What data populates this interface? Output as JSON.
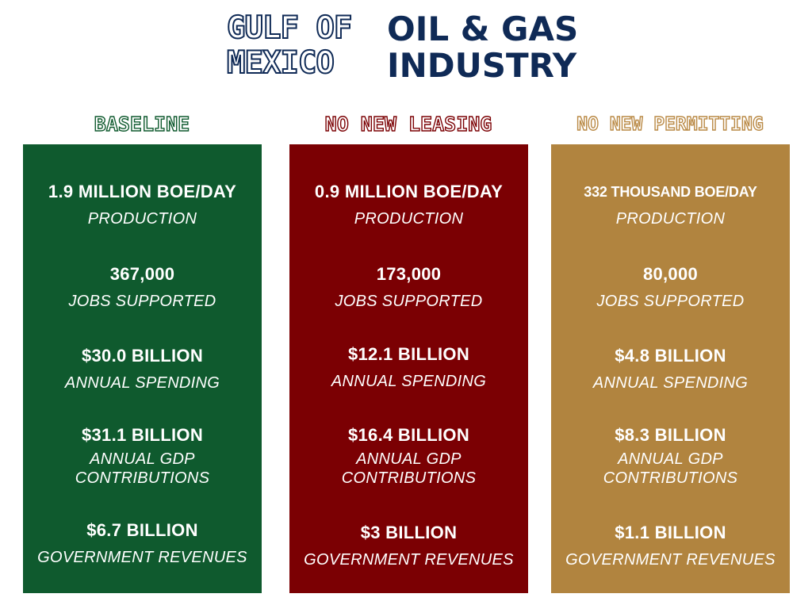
{
  "title": {
    "outline_line1": "GULF OF",
    "outline_line2": "MEXICO",
    "solid_line1": "OIL & GAS",
    "solid_line2": "INDUSTRY"
  },
  "colors": {
    "navy": "#0f2a56",
    "baseline": "#0f5a2e",
    "no_new_leasing": "#7b0003",
    "no_new_permitting": "#b1843f"
  },
  "scenarios": [
    {
      "heading": "BASELINE",
      "metrics": [
        {
          "value": "1.9 MILLION BOE/DAY",
          "label": "PRODUCTION"
        },
        {
          "value": "367,000",
          "label": "JOBS SUPPORTED"
        },
        {
          "value": "$30.0 BILLION",
          "label": "ANNUAL SPENDING"
        },
        {
          "value": "$31.1 BILLION",
          "label": "ANNUAL GDP CONTRIBUTIONS"
        },
        {
          "value": "$6.7 BILLION",
          "label": "GOVERNMENT REVENUES"
        }
      ]
    },
    {
      "heading": "NO NEW LEASING",
      "metrics": [
        {
          "value": "0.9 MILLION BOE/DAY",
          "label": "PRODUCTION"
        },
        {
          "value": "173,000",
          "label": "JOBS SUPPORTED"
        },
        {
          "value": "$12.1 BILLION",
          "label": "ANNUAL SPENDING"
        },
        {
          "value": "$16.4 BILLION",
          "label": "ANNUAL GDP CONTRIBUTIONS"
        },
        {
          "value": "$3 BILLION",
          "label": "GOVERNMENT REVENUES"
        }
      ]
    },
    {
      "heading": "NO NEW PERMITTING",
      "metrics": [
        {
          "value": "332 THOUSAND BOE/DAY",
          "label": "PRODUCTION"
        },
        {
          "value": "80,000",
          "label": "JOBS SUPPORTED"
        },
        {
          "value": "$4.8 BILLION",
          "label": "ANNUAL SPENDING"
        },
        {
          "value": "$8.3 BILLION",
          "label": "ANNUAL GDP CONTRIBUTIONS"
        },
        {
          "value": "$1.1 BILLION",
          "label": "GOVERNMENT REVENUES"
        }
      ]
    }
  ]
}
